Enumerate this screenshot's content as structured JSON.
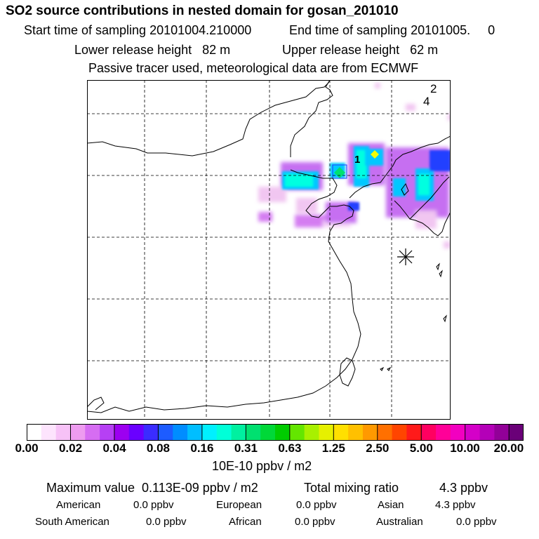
{
  "header": {
    "title": "SO2 source contributions in nested domain for gosan_201010",
    "start_label": "Start time of sampling 20101004.210000",
    "end_label": "End time of sampling 20101005.     0",
    "lower_label": "Lower release height   82 m",
    "upper_label": "Upper release height   62 m",
    "tracer_note": "Passive tracer used, meteorological data are from ECMWF"
  },
  "map": {
    "grid": "dashed",
    "labels": [
      "1",
      "2",
      "4"
    ],
    "receptor_marker": "asterisk-icon",
    "plume_colors": [
      "#f0c0f0",
      "#c060f0",
      "#6a00ff",
      "#00c8ff",
      "#00ffe0",
      "#00e070",
      "#f2ff00"
    ]
  },
  "colorbar": {
    "colors": [
      "#ffffff",
      "#fde4fd",
      "#f7c2f7",
      "#ee9cf0",
      "#d66df2",
      "#b640f4",
      "#9c00f0",
      "#6a00ff",
      "#3a2cff",
      "#1d5cff",
      "#008dff",
      "#00beff",
      "#00f0ff",
      "#00ffd8",
      "#00f0a0",
      "#00e070",
      "#00d838",
      "#00cc00",
      "#64e600",
      "#a8f000",
      "#e6f000",
      "#ffe000",
      "#ffc000",
      "#ff9900",
      "#ff7000",
      "#ff4500",
      "#ff1a1a",
      "#ff0060",
      "#ff0098",
      "#f200c0",
      "#d400c8",
      "#b400b8",
      "#920098",
      "#6a0078"
    ],
    "boundaries": [
      0,
      3,
      6,
      9,
      12,
      15,
      18,
      21,
      24,
      27,
      30,
      33
    ],
    "ticks": [
      "0.00",
      "0.02",
      "0.04",
      "0.08",
      "0.16",
      "0.31",
      "0.63",
      "1.25",
      "2.50",
      "5.00",
      "10.00",
      "20.00"
    ],
    "unit": "10E-10 ppbv / m2"
  },
  "summary": {
    "max_label": "Maximum value  0.113E-09 ppbv / m2",
    "total_label": "Total mixing ratio",
    "total_value": "4.3 ppbv",
    "regions": [
      {
        "name": "American",
        "value": "0.0 ppbv"
      },
      {
        "name": "European",
        "value": "0.0 ppbv"
      },
      {
        "name": "Asian",
        "value": "4.3 ppbv"
      },
      {
        "name": "South American",
        "value": "0.0 ppbv"
      },
      {
        "name": "African",
        "value": "0.0 ppbv"
      },
      {
        "name": "Australian",
        "value": "0.0 ppbv"
      }
    ]
  }
}
